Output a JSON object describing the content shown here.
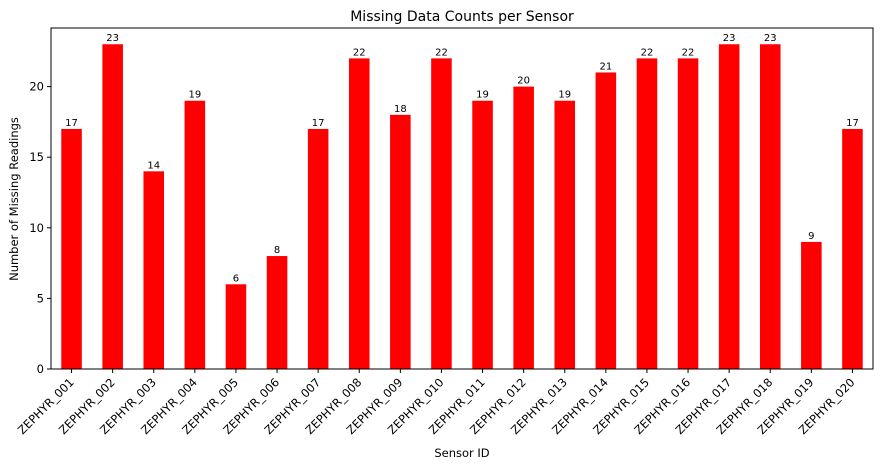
{
  "chart_data": {
    "type": "bar",
    "title": "Missing Data Counts per Sensor",
    "xlabel": "Sensor ID",
    "ylabel": "Number of Missing Readings",
    "categories": [
      "ZEPHYR_001",
      "ZEPHYR_002",
      "ZEPHYR_003",
      "ZEPHYR_004",
      "ZEPHYR_005",
      "ZEPHYR_006",
      "ZEPHYR_007",
      "ZEPHYR_008",
      "ZEPHYR_009",
      "ZEPHYR_010",
      "ZEPHYR_011",
      "ZEPHYR_012",
      "ZEPHYR_013",
      "ZEPHYR_014",
      "ZEPHYR_015",
      "ZEPHYR_016",
      "ZEPHYR_017",
      "ZEPHYR_018",
      "ZEPHYR_019",
      "ZEPHYR_020"
    ],
    "values": [
      17,
      23,
      14,
      19,
      6,
      8,
      17,
      22,
      18,
      22,
      19,
      20,
      19,
      21,
      22,
      22,
      23,
      23,
      9,
      17
    ],
    "ylim": [
      0,
      24.15
    ],
    "yticks": [
      0,
      5,
      10,
      15,
      20
    ],
    "bar_color": "#ff0000",
    "grid": false,
    "legend": "none",
    "xtick_rotation": 45
  }
}
